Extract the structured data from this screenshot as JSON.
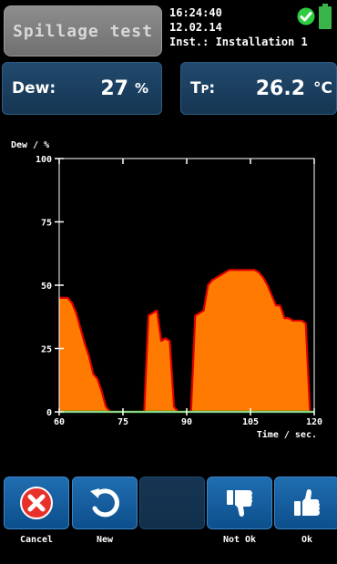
{
  "header": {
    "title": "Spillage test",
    "time": "16:24:40",
    "date": "12.02.14",
    "installation": "Inst.: Installation 1"
  },
  "readings": {
    "dew": {
      "label": "Dew:",
      "value": "27",
      "unit": "%"
    },
    "tp": {
      "label": "TP:",
      "label_main": "T",
      "label_sub": "P",
      "label_colon": ":",
      "value": "26.2",
      "unit": "°C"
    }
  },
  "chart_data": {
    "type": "area",
    "ylabel": "Dew / %",
    "xlabel": "Time / sec.",
    "xlim": [
      60,
      120
    ],
    "ylim": [
      0,
      100
    ],
    "x_ticks": [
      60,
      75,
      90,
      105,
      120
    ],
    "y_ticks": [
      0,
      25,
      50,
      75,
      100
    ],
    "fill_color": "#ff7a00",
    "line_color": "#e00000",
    "baseline_color": "#1aa81a",
    "series": [
      {
        "x": [
          60,
          61,
          62,
          63,
          64,
          65,
          66,
          67,
          68,
          69,
          70,
          71,
          72,
          73,
          74,
          75,
          76,
          77,
          78,
          79,
          80,
          81,
          82,
          83,
          84,
          85,
          86,
          87,
          88,
          89,
          90,
          91,
          92,
          93,
          94,
          95,
          96,
          97,
          98,
          99,
          100,
          101,
          102,
          103,
          104,
          105,
          106,
          107,
          108,
          109,
          110,
          111,
          112,
          113,
          114,
          115,
          116,
          117,
          118,
          119
        ],
        "y": [
          45,
          45,
          45,
          43,
          39,
          33,
          27,
          22,
          15,
          13,
          8,
          2,
          0,
          0,
          0,
          0,
          0,
          0,
          0,
          0,
          0,
          38,
          39,
          40,
          28,
          29,
          28,
          2,
          0,
          0,
          0,
          0,
          38,
          39,
          40,
          50,
          52,
          53,
          54,
          55,
          56,
          56,
          56,
          56,
          56,
          56,
          56,
          55,
          53,
          50,
          46,
          42,
          42,
          37,
          37,
          36,
          36,
          36,
          35,
          0
        ]
      }
    ]
  },
  "softkeys": [
    {
      "label": "Cancel",
      "icon": "cancel-icon"
    },
    {
      "label": "New",
      "icon": "refresh-icon"
    },
    {
      "label": "",
      "icon": ""
    },
    {
      "label": "Not Ok",
      "icon": "thumbs-down-icon"
    },
    {
      "label": "Ok",
      "icon": "thumbs-up-icon"
    }
  ],
  "colors": {
    "panel": "#163552",
    "softkey": "#0d4f8c",
    "check": "#2ecc40",
    "battery": "#3ab54a"
  }
}
